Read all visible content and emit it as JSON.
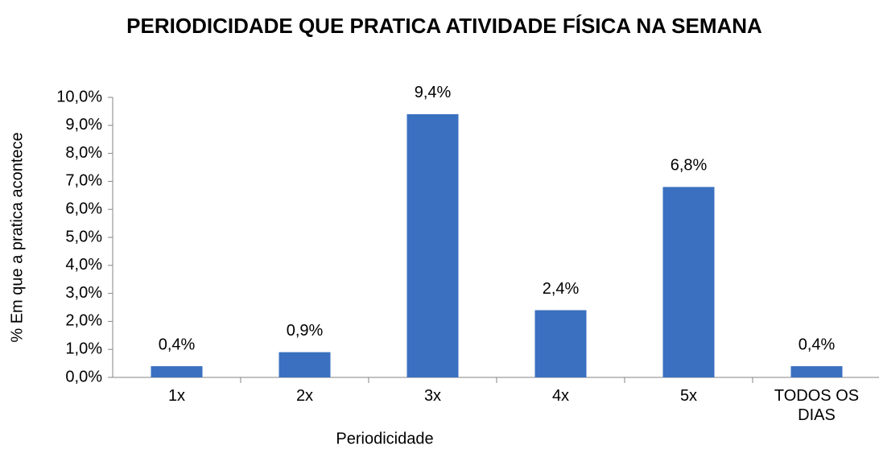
{
  "chart_data": {
    "type": "bar",
    "title": "PERIODICIDADE QUE PRATICA ATIVIDADE FÍSICA NA SEMANA",
    "x_label": "Periodicidade",
    "y_label": "% Em que a pratica acontece",
    "categories": [
      "1x",
      "2x",
      "3x",
      "4x",
      "5x",
      "TODOS OS DIAS"
    ],
    "values": [
      0.4,
      0.9,
      9.4,
      2.4,
      6.8,
      0.4
    ],
    "value_labels": [
      "0,4%",
      "0,9%",
      "9,4%",
      "2,4%",
      "6,8%",
      "0,4%"
    ],
    "color": "#3a70bf",
    "ylim": [
      0,
      10
    ],
    "yticks": [
      {
        "value": 0,
        "label": "0,0%"
      },
      {
        "value": 1,
        "label": "1,0%"
      },
      {
        "value": 2,
        "label": "2,0%"
      },
      {
        "value": 3,
        "label": "3,0%"
      },
      {
        "value": 4,
        "label": "4,0%"
      },
      {
        "value": 5,
        "label": "5,0%"
      },
      {
        "value": 6,
        "label": "6,0%"
      },
      {
        "value": 7,
        "label": "7,0%"
      },
      {
        "value": 8,
        "label": "8,0%"
      },
      {
        "value": 9,
        "label": "9,0%"
      },
      {
        "value": 10,
        "label": "10,0%"
      }
    ],
    "grid": false
  }
}
